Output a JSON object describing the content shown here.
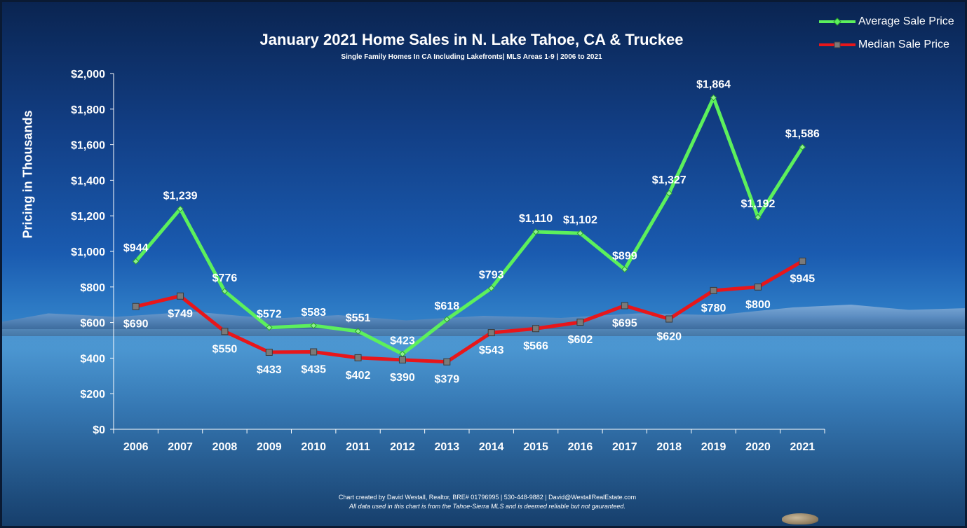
{
  "chart_data": {
    "type": "line",
    "title": "January 2021 Home Sales in N. Lake Tahoe, CA & Truckee",
    "subtitle": "Single Family Homes In CA Including Lakefronts| MLS Areas 1-9 | 2006 to 2021",
    "ylabel": "Pricing in Thousands",
    "xlabel": "",
    "categories": [
      "2006",
      "2007",
      "2008",
      "2009",
      "2010",
      "2011",
      "2012",
      "2013",
      "2014",
      "2015",
      "2016",
      "2017",
      "2018",
      "2019",
      "2020",
      "2021"
    ],
    "ylim": [
      0,
      2000
    ],
    "yticks": [
      0,
      200,
      400,
      600,
      800,
      1000,
      1200,
      1400,
      1600,
      1800,
      2000
    ],
    "ytick_labels": [
      "$0",
      "$200",
      "$400",
      "$600",
      "$800",
      "$1,000",
      "$1,200",
      "$1,400",
      "$1,600",
      "$1,800",
      "$2,000"
    ],
    "grid": false,
    "legend_position": "top-right",
    "series": [
      {
        "name": "Average Sale Price",
        "color": "#5cf05c",
        "marker": "diamond",
        "values": [
          944,
          1239,
          776,
          572,
          583,
          551,
          423,
          618,
          793,
          1110,
          1102,
          899,
          1327,
          1864,
          1192,
          1586
        ],
        "labels": [
          "$944",
          "$1,239",
          "$776",
          "$572",
          "$583",
          "$551",
          "$423",
          "$618",
          "$793",
          "$1,110",
          "$1,102",
          "$899",
          "$1,327",
          "$1,864",
          "$1,192",
          "$1,586"
        ],
        "label_pos": [
          "above",
          "above",
          "above",
          "above",
          "above",
          "above",
          "above",
          "above",
          "above",
          "above",
          "above",
          "above",
          "above",
          "above",
          "above",
          "above"
        ]
      },
      {
        "name": "Median Sale Price",
        "color": "#e8161a",
        "marker": "square",
        "values": [
          690,
          749,
          550,
          433,
          435,
          402,
          390,
          379,
          543,
          566,
          602,
          695,
          620,
          780,
          800,
          945
        ],
        "labels": [
          "$690",
          "$749",
          "$550",
          "$433",
          "$435",
          "$402",
          "$390",
          "$379",
          "$543",
          "$566",
          "$602",
          "$695",
          "$620",
          "$780",
          "$800",
          "$945"
        ],
        "label_pos": [
          "below",
          "below",
          "below",
          "below",
          "below",
          "below",
          "below",
          "below",
          "below",
          "below",
          "below",
          "below",
          "below",
          "below",
          "below",
          "below"
        ]
      }
    ]
  },
  "credits": {
    "line1": "Chart created by David Westall, Realtor, BRE# 01796995 | 530-448-9882 | David@WestallRealEstate.com",
    "line2": "All data used in this chart is from the Tahoe-Sierra MLS and is deemed reliable but  not gauranteed."
  },
  "legend": {
    "avg_label": "Average Sale Price",
    "med_label": "Median Sale Price"
  }
}
